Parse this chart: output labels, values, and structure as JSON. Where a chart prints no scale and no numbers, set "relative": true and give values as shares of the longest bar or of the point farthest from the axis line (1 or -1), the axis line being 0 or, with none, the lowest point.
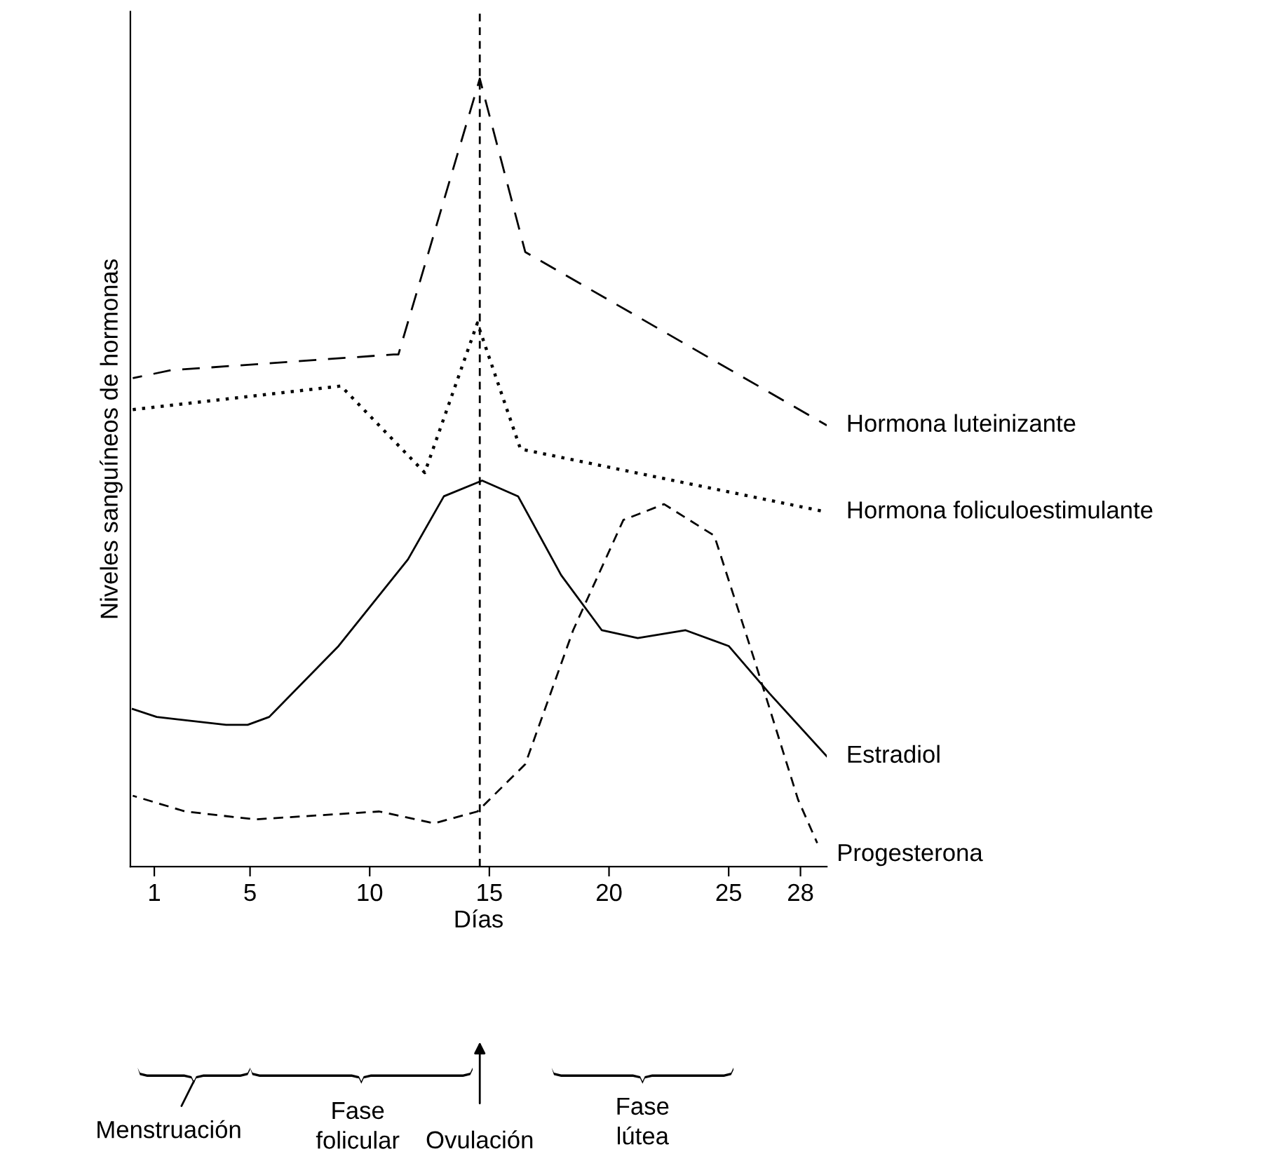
{
  "chart_data": {
    "type": "line",
    "relative": true,
    "xlabel": "Días",
    "ylabel": "Niveles sanguíneos de hormonas",
    "xlim": [
      0,
      29.1
    ],
    "xticks": [
      1,
      5,
      10,
      15,
      20,
      25,
      28
    ],
    "grid": false,
    "legend": false,
    "marker": "none",
    "series": [
      {
        "name": "Hormona luteinizante",
        "color": "#000000",
        "line_style": "dashed",
        "x": [
          0.1,
          1.7,
          11.0,
          11.2,
          14.6,
          16.5,
          29.1
        ],
        "values": [
          0.62,
          0.63,
          0.65,
          0.65,
          1.0,
          0.78,
          0.56
        ]
      },
      {
        "name": "Hormona foliculoestimulante",
        "color": "#000000",
        "line_style": "dotted",
        "x": [
          0.1,
          8.8,
          12.3,
          14.5,
          16.3,
          29.1
        ],
        "values": [
          0.58,
          0.61,
          0.5,
          0.69,
          0.53,
          0.45
        ]
      },
      {
        "name": "Estradiol",
        "color": "#000000",
        "line_style": "solid",
        "x": [
          0.1,
          1.1,
          4.0,
          4.9,
          5.8,
          8.7,
          11.6,
          13.1,
          14.7,
          16.2,
          18.0,
          19.7,
          21.2,
          23.2,
          25.0,
          26.7,
          29.1
        ],
        "values": [
          0.2,
          0.19,
          0.18,
          0.18,
          0.19,
          0.28,
          0.39,
          0.47,
          0.49,
          0.47,
          0.37,
          0.3,
          0.29,
          0.3,
          0.28,
          0.22,
          0.14
        ]
      },
      {
        "name": "Progesterona",
        "color": "#000000",
        "line_style": "dashed",
        "x": [
          0.1,
          2.3,
          5.2,
          10.4,
          12.7,
          14.5,
          16.5,
          18.5,
          20.6,
          22.3,
          24.4,
          26.1,
          27.9,
          28.7
        ],
        "values": [
          0.09,
          0.07,
          0.06,
          0.07,
          0.055,
          0.07,
          0.13,
          0.3,
          0.44,
          0.46,
          0.42,
          0.26,
          0.085,
          0.03
        ]
      }
    ],
    "ref_lines": [
      {
        "axis": "x",
        "value": 14.6,
        "color": "#000000",
        "line_style": "dashed"
      }
    ],
    "annotations": [
      "Menstruación",
      "Fase\nfolicular",
      "Fase\nlútea",
      "Ovulación"
    ]
  }
}
